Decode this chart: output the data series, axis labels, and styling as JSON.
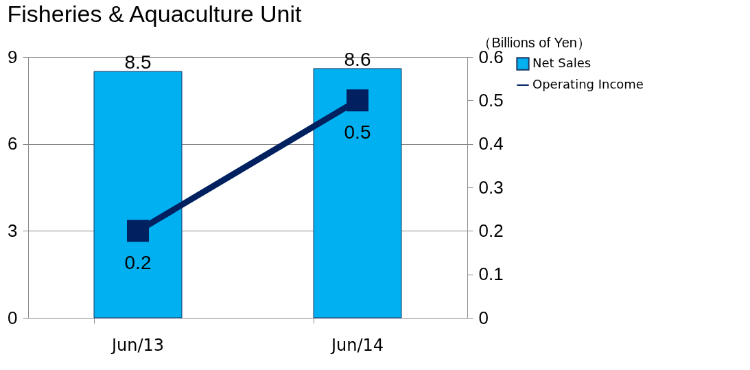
{
  "chart_data": {
    "type": "bar",
    "title": "Fisheries & Aquaculture Unit",
    "annotations": [
      "（Billions of Yen）"
    ],
    "categories": [
      "Jun/13",
      "Jun/14"
    ],
    "series": [
      {
        "name": "Net Sales",
        "color": "#00b0f0",
        "values": [
          8.5,
          8.6
        ]
      },
      {
        "name": "Operating Income",
        "type": "line",
        "axis": "y2",
        "color": "#002060",
        "values": [
          0.2,
          0.5
        ]
      }
    ],
    "ylim": [
      0,
      9
    ],
    "yticks": [
      0,
      3,
      6,
      9
    ],
    "y2lim": [
      0,
      0.6
    ],
    "y2ticks": [
      0,
      0.1,
      0.2,
      0.3,
      0.4,
      0.5,
      0.6
    ],
    "data_labels": true,
    "grid": "y",
    "legend": "right",
    "marker": "square",
    "line_style": "solid"
  }
}
